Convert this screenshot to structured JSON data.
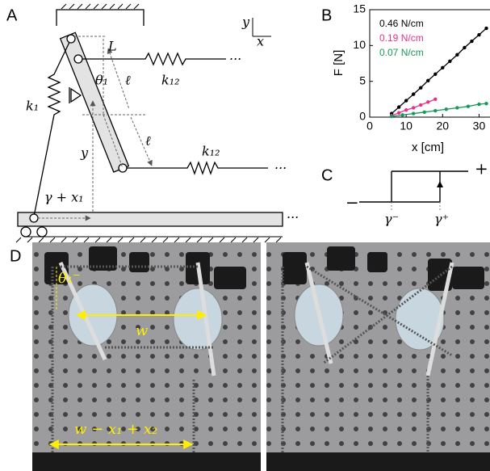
{
  "chart_data": {
    "type": "line",
    "panel": "B",
    "xlabel": "x [cm]",
    "ylabel": "F [N]",
    "xlim": [
      0,
      33
    ],
    "ylim": [
      0,
      15
    ],
    "xticks": [
      0,
      10,
      20,
      30
    ],
    "yticks": [
      0,
      5,
      10,
      15
    ],
    "series": [
      {
        "name": "0.46 N/cm",
        "color": "#000000",
        "x": [
          6,
          8,
          10,
          12,
          14,
          16,
          18,
          20,
          22,
          24,
          26,
          28,
          30,
          32
        ],
        "values": [
          0.5,
          1.4,
          2.3,
          3.2,
          4.1,
          5.1,
          6.0,
          6.9,
          7.8,
          8.7,
          9.7,
          10.6,
          11.5,
          12.4
        ]
      },
      {
        "name": "0.19 N/cm",
        "color": "#e8308a",
        "x": [
          6,
          8,
          10,
          12,
          14,
          16,
          18
        ],
        "values": [
          0.2,
          0.6,
          1.0,
          1.3,
          1.7,
          2.1,
          2.5
        ]
      },
      {
        "name": "0.07 N/cm",
        "color": "#159a5a",
        "x": [
          6,
          9,
          12,
          15,
          18,
          21,
          24,
          27,
          30,
          32
        ],
        "values": [
          0.1,
          0.3,
          0.5,
          0.7,
          0.9,
          1.1,
          1.3,
          1.5,
          1.8,
          1.9
        ]
      }
    ]
  },
  "panel_a": {
    "letter": "A",
    "L": "L",
    "ell_1": "ℓ",
    "ell_2": "ℓ",
    "theta": "θ₁",
    "k12_top": "k₁₂",
    "k12_bottom": "k₁₂",
    "k1": "k₁",
    "y": "y",
    "gamma": "γ + x₁",
    "dots_1": "···",
    "dots_2": "···",
    "dots_3": "···",
    "axis_y": "y",
    "axis_x": "x"
  },
  "panel_c": {
    "letter": "C",
    "minus": "−",
    "plus": "+",
    "gamma_minus": "γ⁻",
    "gamma_plus": "γ⁺"
  },
  "panel_d": {
    "letter": "D",
    "theta": "θ₁⁻",
    "w": "w",
    "w_expr": "w − x₁ + x₂"
  }
}
